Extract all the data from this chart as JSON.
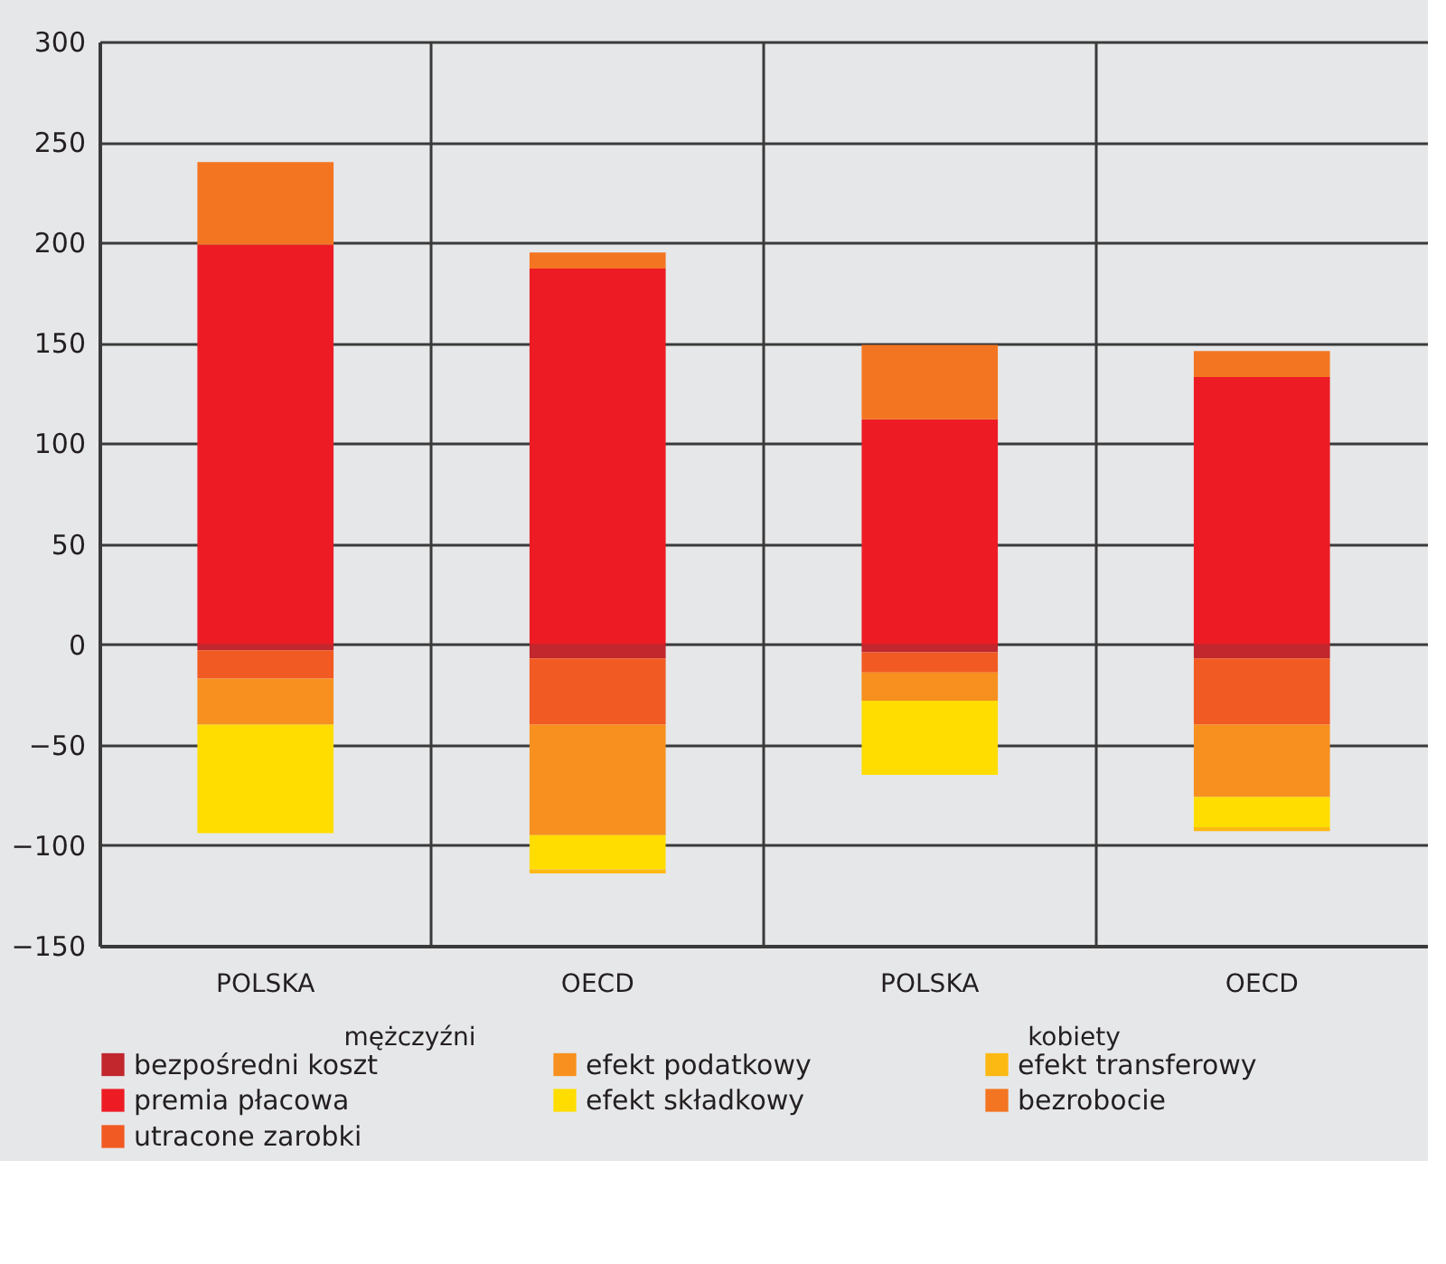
{
  "chart_data": {
    "type": "bar",
    "stacked": true,
    "categories": [
      "POLSKA",
      "OECD",
      "POLSKA",
      "OECD"
    ],
    "annotations": [
      "mężczyźni",
      "kobiety"
    ],
    "series": [
      {
        "name": "bezpośredni koszt",
        "color": "#c1272d",
        "values": [
          -3,
          -7,
          -4,
          -7
        ]
      },
      {
        "name": "premia płacowa",
        "color": "#ed1c24",
        "values": [
          199,
          187,
          112,
          133
        ]
      },
      {
        "name": "utracone zarobki",
        "color": "#f15a22",
        "values": [
          -14,
          -33,
          -10,
          -33
        ]
      },
      {
        "name": "efekt podatkowy",
        "color": "#f7901e",
        "values": [
          -23,
          -55,
          -14,
          -36
        ]
      },
      {
        "name": "efekt składkowy",
        "color": "#ffdd00",
        "values": [
          -54,
          -17,
          -37,
          -15
        ]
      },
      {
        "name": "efekt transferowy",
        "color": "#fdb913",
        "values": [
          0,
          -2,
          0,
          -2
        ]
      },
      {
        "name": "bezrobocie",
        "color": "#f47521",
        "values": [
          41,
          8,
          37,
          13
        ]
      }
    ],
    "ylim": [
      -150,
      300
    ],
    "yticks": [
      -150,
      -100,
      -50,
      0,
      50,
      100,
      150,
      200,
      250,
      300
    ],
    "grid": true,
    "legend": "bottom"
  }
}
